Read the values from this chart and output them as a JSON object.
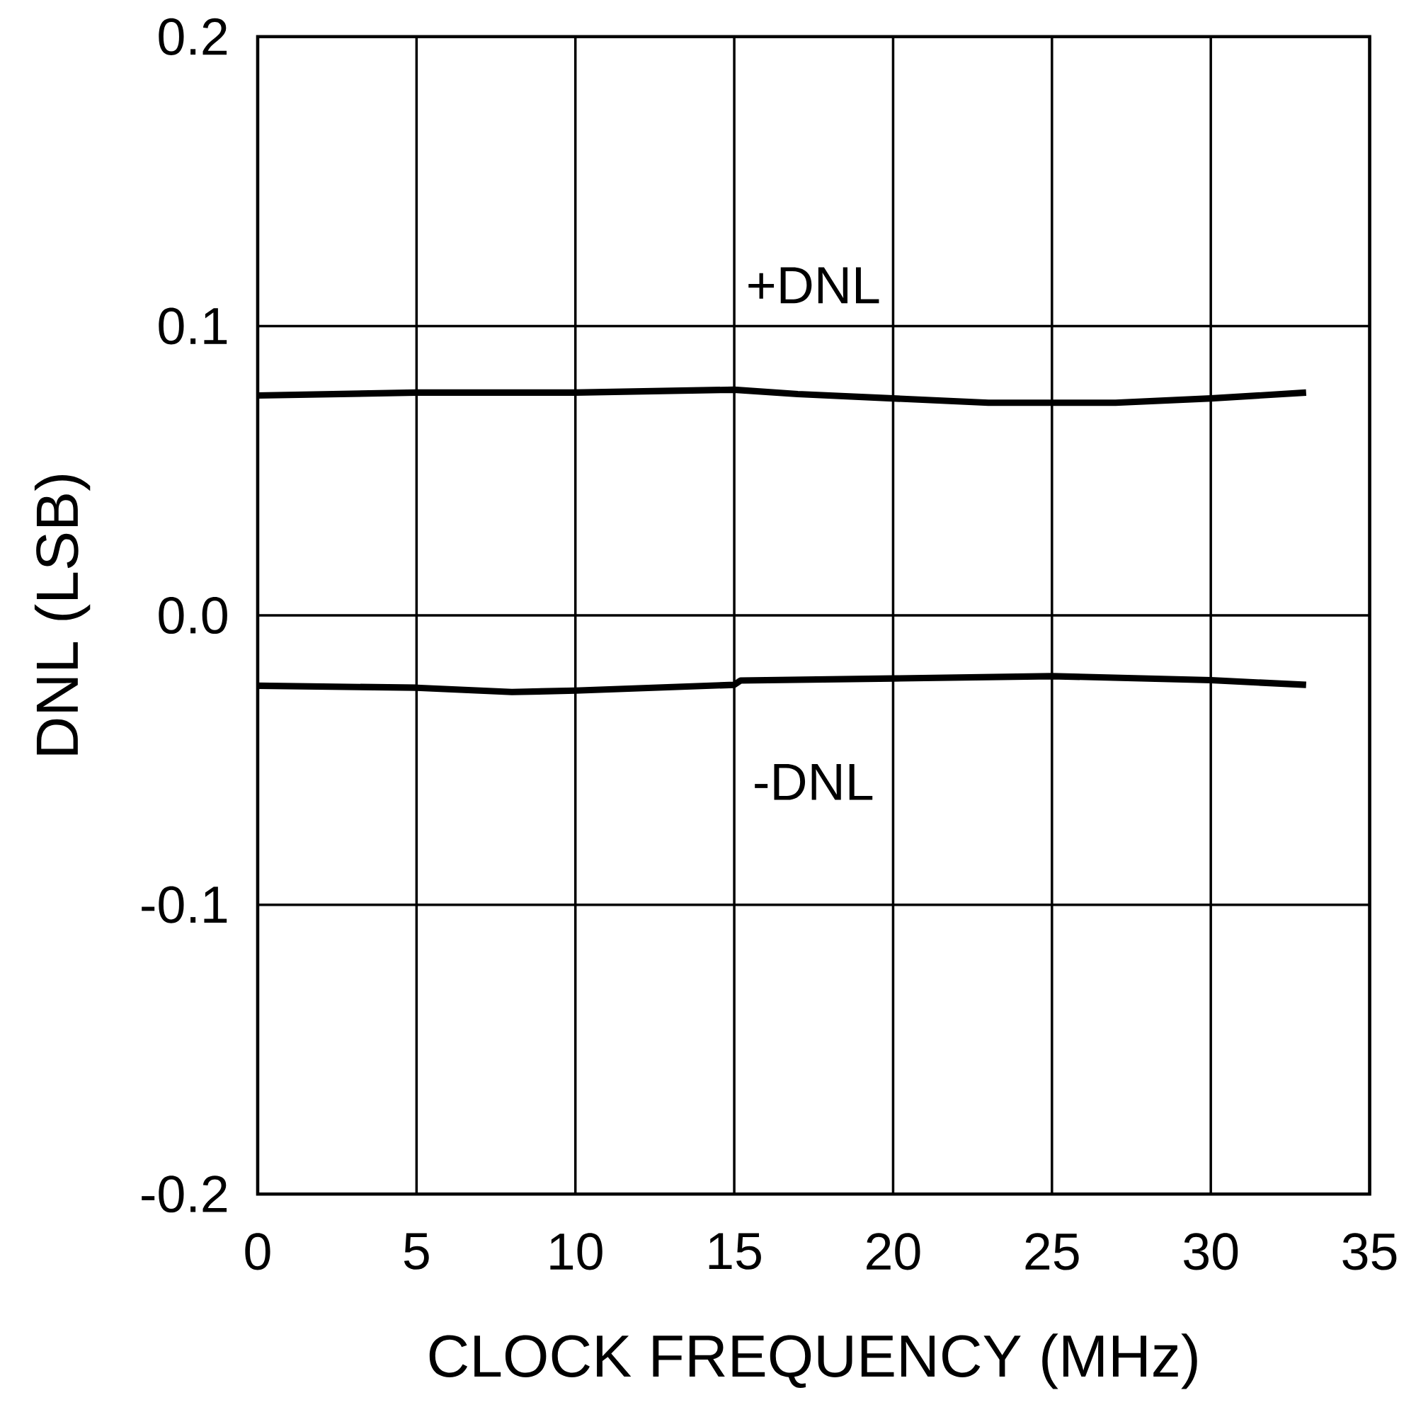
{
  "chart_data": {
    "type": "line",
    "xlabel": "CLOCK FREQUENCY (MHz)",
    "ylabel": "DNL (LSB)",
    "xlim": [
      0,
      35
    ],
    "ylim": [
      -0.2,
      0.2
    ],
    "xticks": [
      0,
      5,
      10,
      15,
      20,
      25,
      30,
      35
    ],
    "yticks": [
      {
        "value": -0.2,
        "label": "-0.2"
      },
      {
        "value": -0.1,
        "label": "-0.1"
      },
      {
        "value": 0,
        "label": "0.0"
      },
      {
        "value": 0.1,
        "label": "0.1"
      },
      {
        "value": 0.2,
        "label": "0.2"
      }
    ],
    "grid": true,
    "marker": "none",
    "line_style": "solid",
    "series": [
      {
        "name": "+DNL",
        "color": "#000000",
        "x": [
          0,
          5,
          10,
          15,
          17,
          20,
          23,
          27,
          30,
          33
        ],
        "values": [
          0.076,
          0.077,
          0.077,
          0.078,
          0.0765,
          0.075,
          0.0735,
          0.0735,
          0.075,
          0.077
        ]
      },
      {
        "name": "-DNL",
        "color": "#000000",
        "x": [
          0,
          5,
          8,
          10,
          15,
          15.2,
          20,
          25,
          30,
          33
        ],
        "values": [
          -0.0243,
          -0.025,
          -0.0265,
          -0.026,
          -0.024,
          -0.0225,
          -0.0218,
          -0.021,
          -0.0224,
          -0.024
        ]
      }
    ]
  }
}
